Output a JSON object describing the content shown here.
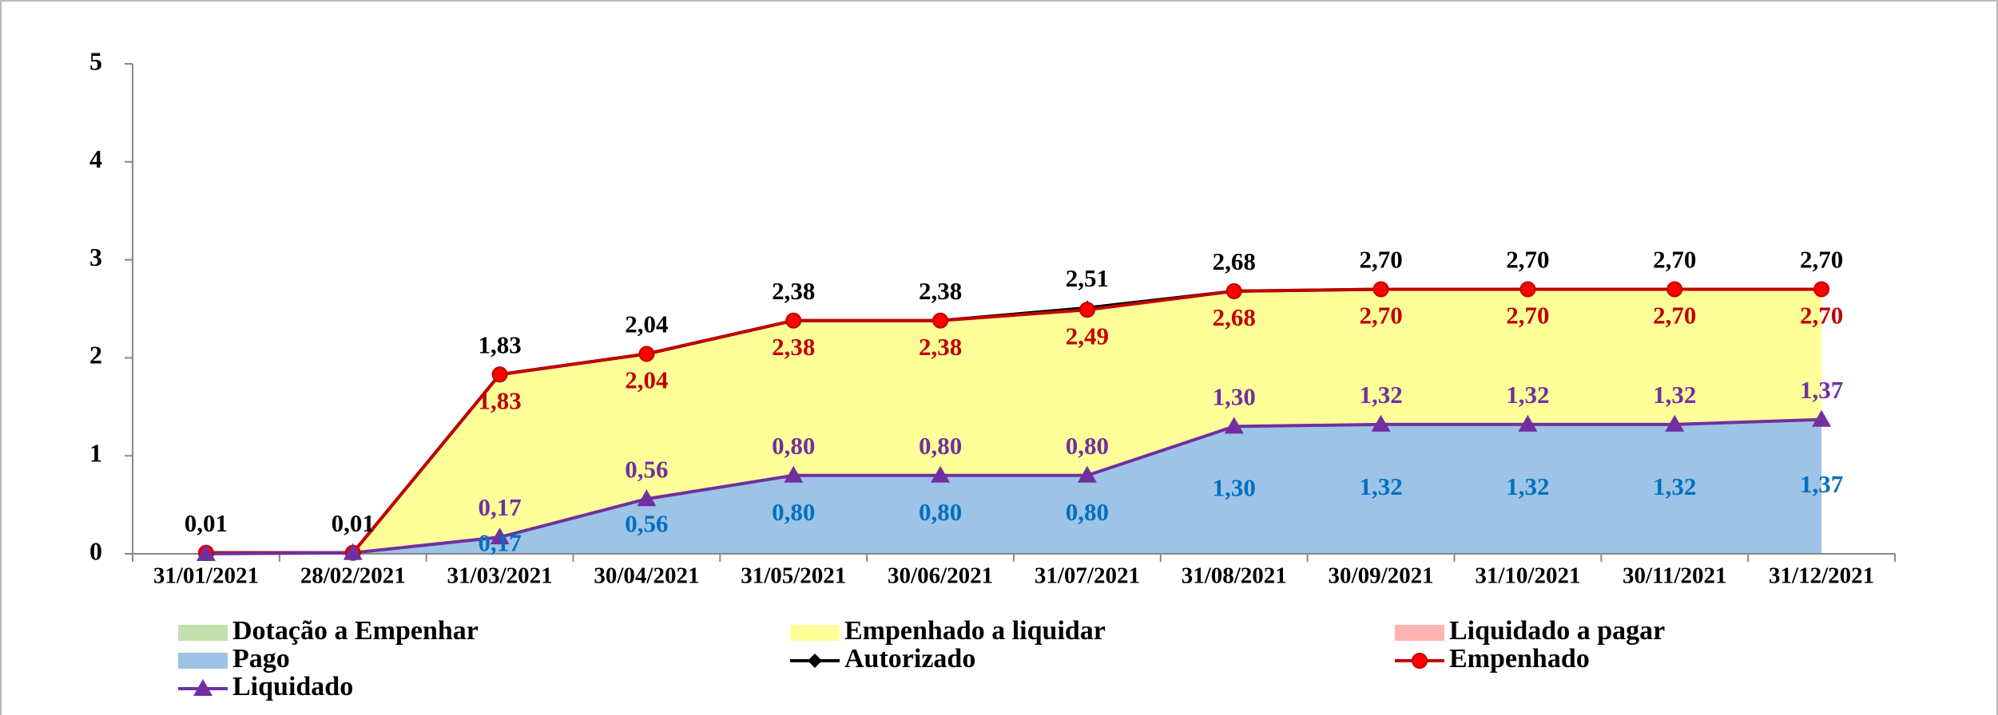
{
  "chart_data": {
    "type": "stacked-area-line",
    "categories": [
      "31/01/2021",
      "28/02/2021",
      "31/03/2021",
      "30/04/2021",
      "31/05/2021",
      "30/06/2021",
      "31/07/2021",
      "31/08/2021",
      "30/09/2021",
      "31/10/2021",
      "30/11/2021",
      "31/12/2021"
    ],
    "ylim": [
      0,
      5
    ],
    "yticks": [
      0,
      1,
      2,
      3,
      4,
      5
    ],
    "series": [
      {
        "name": "Dotação a Empenhar",
        "type": "area",
        "color": "#c3dfb0",
        "values": [
          0,
          0,
          0,
          0,
          0,
          0,
          0.02,
          0,
          0,
          0,
          0,
          0
        ]
      },
      {
        "name": "Empenhado a liquidar",
        "type": "area",
        "color": "#ffff99",
        "values": [
          0.01,
          0,
          1.66,
          1.48,
          1.58,
          1.58,
          1.69,
          1.38,
          1.38,
          1.38,
          1.38,
          1.33
        ]
      },
      {
        "name": "Liquidado a pagar",
        "type": "area",
        "color": "#ffb3b3",
        "values": [
          0,
          0,
          0,
          0,
          0,
          0,
          0,
          0,
          0,
          0,
          0,
          0
        ]
      },
      {
        "name": "Pago",
        "type": "area",
        "color": "#9dc3e6",
        "label_color": "#0070c0",
        "values": [
          0,
          0.01,
          0.17,
          0.56,
          0.8,
          0.8,
          0.8,
          1.3,
          1.32,
          1.32,
          1.32,
          1.37
        ],
        "value_labels": [
          null,
          null,
          "0,17",
          "0,56",
          "0,80",
          "0,80",
          "0,80",
          "1,30",
          "1,32",
          "1,32",
          "1,32",
          "1,37"
        ]
      },
      {
        "name": "Autorizado",
        "type": "line",
        "color": "#000000",
        "label_color": "#000000",
        "marker": "diamond",
        "values": [
          0.01,
          0.01,
          1.83,
          2.04,
          2.38,
          2.38,
          2.51,
          2.68,
          2.7,
          2.7,
          2.7,
          2.7
        ],
        "value_labels": [
          "0,01",
          "0,01",
          "1,83",
          "2,04",
          "2,38",
          "2,38",
          "2,51",
          "2,68",
          "2,70",
          "2,70",
          "2,70",
          "2,70"
        ]
      },
      {
        "name": "Empenhado",
        "type": "line",
        "color": "#c00000",
        "label_color": "#c00000",
        "marker": "circle",
        "values": [
          0.01,
          0.01,
          1.83,
          2.04,
          2.38,
          2.38,
          2.49,
          2.68,
          2.7,
          2.7,
          2.7,
          2.7
        ],
        "value_labels": [
          null,
          null,
          "1,83",
          "2,04",
          "2,38",
          "2,38",
          "2,49",
          "2,68",
          "2,70",
          "2,70",
          "2,70",
          "2,70"
        ]
      },
      {
        "name": "Liquidado",
        "type": "line",
        "color": "#7030a0",
        "label_color": "#7030a0",
        "marker": "triangle",
        "values": [
          0,
          0.01,
          0.17,
          0.56,
          0.8,
          0.8,
          0.8,
          1.3,
          1.32,
          1.32,
          1.32,
          1.37
        ],
        "value_labels": [
          null,
          null,
          "0,17",
          "0,56",
          "0,80",
          "0,80",
          "0,80",
          "1,30",
          "1,32",
          "1,32",
          "1,32",
          "1,37"
        ]
      }
    ]
  }
}
